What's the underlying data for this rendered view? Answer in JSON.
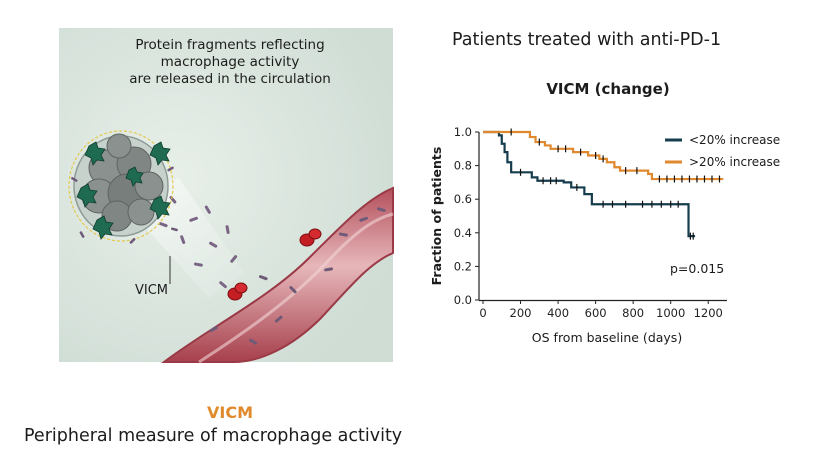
{
  "illustration": {
    "caption": [
      "Protein fragments reflecting",
      "macrophage activity",
      "are released in the circulation"
    ],
    "callout_label": "VICM"
  },
  "heading": "Patients treated with anti-PD-1",
  "colors": {
    "series_low": "#163d4d",
    "series_high": "#e0882d",
    "accent": "#e08a2c"
  },
  "chart_data": {
    "type": "line",
    "step": true,
    "title": "VICM (change)",
    "xlabel": "OS from baseline (days)",
    "ylabel": "Fraction of patients",
    "xlim": [
      0,
      1300
    ],
    "ylim": [
      0,
      1.0
    ],
    "xticks": [
      0,
      200,
      400,
      600,
      800,
      1000,
      1200
    ],
    "yticks": [
      "0.0",
      "0.2",
      "0.4",
      "0.6",
      "0.8",
      "1.0"
    ],
    "annotation": "p=0.015",
    "legend_position": "top-right",
    "series": [
      {
        "name": "<20% increase",
        "color": "#163d4d",
        "points": [
          [
            0,
            1.0
          ],
          [
            75,
            1.0
          ],
          [
            85,
            0.98
          ],
          [
            100,
            0.93
          ],
          [
            115,
            0.88
          ],
          [
            130,
            0.82
          ],
          [
            150,
            0.76
          ],
          [
            260,
            0.73
          ],
          [
            290,
            0.71
          ],
          [
            430,
            0.7
          ],
          [
            470,
            0.67
          ],
          [
            540,
            0.63
          ],
          [
            580,
            0.57
          ],
          [
            740,
            0.57
          ],
          [
            1090,
            0.57
          ],
          [
            1095,
            0.38
          ],
          [
            1130,
            0.38
          ]
        ],
        "censored": [
          [
            200,
            0.76
          ],
          [
            320,
            0.71
          ],
          [
            360,
            0.71
          ],
          [
            390,
            0.71
          ],
          [
            500,
            0.67
          ],
          [
            640,
            0.57
          ],
          [
            690,
            0.57
          ],
          [
            760,
            0.57
          ],
          [
            850,
            0.57
          ],
          [
            900,
            0.57
          ],
          [
            950,
            0.57
          ],
          [
            1000,
            0.57
          ],
          [
            1040,
            0.57
          ],
          [
            1105,
            0.38
          ],
          [
            1120,
            0.38
          ]
        ]
      },
      {
        "name": ">20% increase",
        "color": "#e0882d",
        "points": [
          [
            0,
            1.0
          ],
          [
            230,
            1.0
          ],
          [
            250,
            0.97
          ],
          [
            280,
            0.94
          ],
          [
            330,
            0.92
          ],
          [
            360,
            0.9
          ],
          [
            480,
            0.88
          ],
          [
            560,
            0.86
          ],
          [
            620,
            0.84
          ],
          [
            660,
            0.82
          ],
          [
            700,
            0.79
          ],
          [
            730,
            0.77
          ],
          [
            880,
            0.75
          ],
          [
            900,
            0.72
          ],
          [
            1280,
            0.72
          ]
        ],
        "censored": [
          [
            150,
            1.0
          ],
          [
            300,
            0.94
          ],
          [
            400,
            0.9
          ],
          [
            440,
            0.9
          ],
          [
            520,
            0.88
          ],
          [
            600,
            0.86
          ],
          [
            640,
            0.84
          ],
          [
            760,
            0.77
          ],
          [
            820,
            0.77
          ],
          [
            940,
            0.72
          ],
          [
            980,
            0.72
          ],
          [
            1020,
            0.72
          ],
          [
            1060,
            0.72
          ],
          [
            1100,
            0.72
          ],
          [
            1140,
            0.72
          ],
          [
            1180,
            0.72
          ],
          [
            1220,
            0.72
          ],
          [
            1260,
            0.72
          ]
        ]
      }
    ]
  },
  "bottom": {
    "accent_label": "VICM",
    "description": "Peripheral measure of macrophage activity"
  }
}
